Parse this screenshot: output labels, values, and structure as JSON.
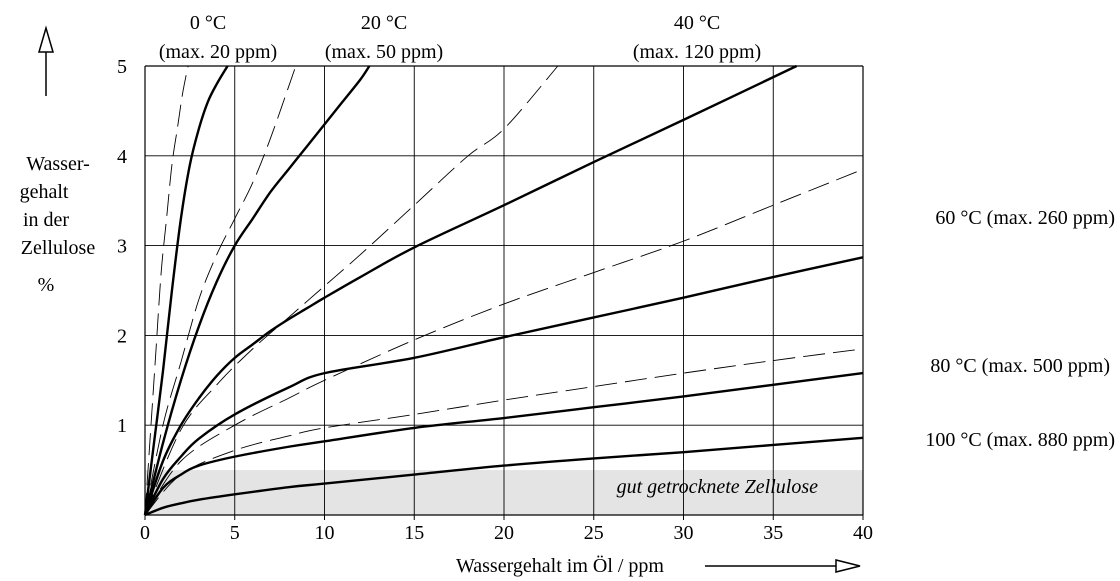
{
  "chart_data": {
    "type": "line",
    "title": "",
    "xlabel": "Wassergehalt im Öl / ppm",
    "ylabel": {
      "lines": [
        "Wasser-",
        "gehalt",
        "in der",
        "Zellulose"
      ],
      "unit": "%"
    },
    "xlim": [
      0,
      40
    ],
    "ylim": [
      0,
      5
    ],
    "x_ticks": [
      0,
      5,
      10,
      15,
      20,
      25,
      30,
      35,
      40
    ],
    "y_ticks": [
      1,
      2,
      3,
      4,
      5
    ],
    "grid": true,
    "shaded_region": {
      "label": "gut getrocknete Zellulose",
      "y_range": [
        0,
        0.5
      ],
      "color": "#e4e4e4"
    },
    "series_labels": [
      {
        "line1": "0 °C",
        "line2": "(max. 20 ppm)"
      },
      {
        "line1": "20 °C",
        "line2": "(max. 50 ppm)"
      },
      {
        "line1": "40 °C",
        "line2": "(max. 120 ppm)"
      },
      {
        "text": "60 °C (max. 260 ppm)"
      },
      {
        "text": "80 °C (max. 500 ppm)"
      },
      {
        "text": "100 °C (max. 880 ppm)"
      }
    ],
    "series": [
      {
        "style": "solid",
        "x": [
          0,
          0.5,
          1.0,
          1.5,
          2.0,
          2.5,
          3.0,
          3.5,
          4.0,
          4.6
        ],
        "y": [
          0,
          0.8,
          1.6,
          2.5,
          3.3,
          3.9,
          4.3,
          4.6,
          4.8,
          5.0
        ]
      },
      {
        "style": "solid",
        "x": [
          0,
          1,
          2,
          3,
          4,
          5,
          6,
          7,
          8,
          9,
          10,
          11,
          12,
          12.5
        ],
        "y": [
          0,
          0.8,
          1.5,
          2.1,
          2.6,
          3.0,
          3.3,
          3.6,
          3.85,
          4.1,
          4.35,
          4.6,
          4.85,
          5.0
        ]
      },
      {
        "style": "solid",
        "x": [
          0,
          1,
          2,
          3,
          4,
          5,
          6,
          7,
          8,
          9,
          10,
          12,
          15,
          20,
          25,
          30,
          36.3
        ],
        "y": [
          0,
          0.6,
          1.0,
          1.3,
          1.55,
          1.75,
          1.9,
          2.05,
          2.18,
          2.3,
          2.42,
          2.65,
          2.98,
          3.45,
          3.93,
          4.4,
          5.0
        ]
      },
      {
        "style": "solid",
        "x": [
          0,
          1,
          2,
          3,
          5,
          8,
          10,
          15,
          20,
          25,
          30,
          35,
          40
        ],
        "y": [
          0,
          0.4,
          0.65,
          0.85,
          1.12,
          1.42,
          1.58,
          1.75,
          1.98,
          2.2,
          2.42,
          2.65,
          2.87
        ]
      },
      {
        "style": "solid",
        "x": [
          0,
          1,
          2,
          3,
          5,
          8,
          10,
          15,
          20,
          25,
          30,
          35,
          40
        ],
        "y": [
          0,
          0.3,
          0.45,
          0.55,
          0.65,
          0.76,
          0.82,
          0.97,
          1.08,
          1.2,
          1.32,
          1.45,
          1.58
        ]
      },
      {
        "style": "solid",
        "x": [
          0,
          1,
          2,
          3,
          5,
          8,
          10,
          15,
          20,
          25,
          30,
          35,
          40
        ],
        "y": [
          0,
          0.08,
          0.13,
          0.17,
          0.23,
          0.31,
          0.35,
          0.45,
          0.55,
          0.63,
          0.7,
          0.78,
          0.86
        ]
      },
      {
        "style": "dashed",
        "x": [
          0,
          0.3,
          0.6,
          0.9,
          1.2,
          1.5,
          1.8,
          2.1,
          2.4
        ],
        "y": [
          0,
          0.9,
          1.8,
          2.7,
          3.3,
          3.9,
          4.3,
          4.7,
          5.0
        ]
      },
      {
        "style": "dashed",
        "x": [
          0,
          1,
          2,
          3,
          4,
          5,
          6,
          7,
          8.4
        ],
        "y": [
          0,
          1.0,
          1.7,
          2.4,
          2.9,
          3.3,
          3.7,
          4.2,
          5.0
        ]
      },
      {
        "style": "dashed",
        "x": [
          0,
          2,
          4,
          6,
          8,
          10,
          12,
          15,
          18,
          20,
          23
        ],
        "y": [
          0,
          0.95,
          1.45,
          1.85,
          2.2,
          2.55,
          2.9,
          3.45,
          4.0,
          4.3,
          5.0
        ]
      },
      {
        "style": "dashed",
        "x": [
          0,
          2,
          5,
          8,
          10,
          15,
          20,
          25,
          30,
          35,
          40
        ],
        "y": [
          0,
          0.6,
          1.0,
          1.3,
          1.5,
          1.95,
          2.35,
          2.7,
          3.05,
          3.45,
          3.85
        ]
      },
      {
        "style": "dashed",
        "x": [
          0,
          2,
          5,
          8,
          10,
          15,
          20,
          25,
          30,
          35,
          40
        ],
        "y": [
          0,
          0.45,
          0.72,
          0.88,
          0.97,
          1.12,
          1.28,
          1.43,
          1.58,
          1.72,
          1.85
        ]
      }
    ]
  },
  "colors": {
    "line": "#000000",
    "grid": "#000000",
    "shade": "#e4e4e4"
  }
}
